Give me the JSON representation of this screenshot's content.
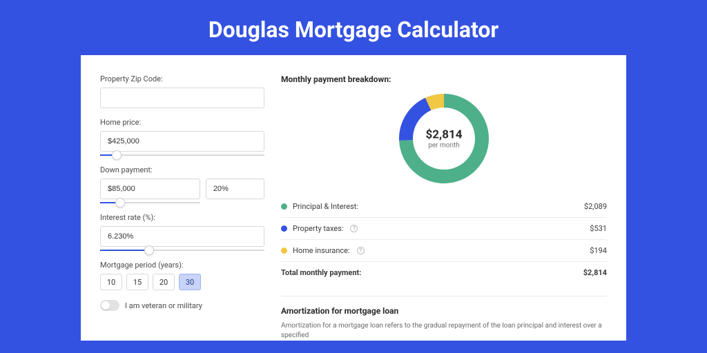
{
  "page_title": "Douglas Mortgage Calculator",
  "colors": {
    "page_bg": "#3452e1",
    "card_bg": "#ffffff",
    "accent": "#3452e1",
    "text_dark": "#2a2a2a",
    "text_muted": "#6a6a6a",
    "input_border": "#d8d8d8"
  },
  "form": {
    "zip_label": "Property Zip Code:",
    "zip_value": "",
    "home_price_label": "Home price:",
    "home_price_value": "$425,000",
    "home_price_slider_pct": 10,
    "down_payment_label": "Down payment:",
    "down_payment_value": "$85,000",
    "down_payment_pct_value": "20%",
    "down_payment_slider_pct": 20,
    "interest_label": "Interest rate (%):",
    "interest_value": "6.230%",
    "interest_slider_pct": 30,
    "period_label": "Mortgage period (years):",
    "period_options": [
      "10",
      "15",
      "20",
      "30"
    ],
    "period_selected": "30",
    "veteran_label": "I am veteran or military",
    "veteran_on": false
  },
  "breakdown": {
    "title": "Monthly payment breakdown:",
    "donut": {
      "center_amount": "$2,814",
      "center_sub": "per month",
      "segments": [
        {
          "label": "Principal & Interest",
          "value": 2089,
          "color": "#4db08a",
          "pct": 74.2
        },
        {
          "label": "Property taxes",
          "value": 531,
          "color": "#3452e1",
          "pct": 18.9
        },
        {
          "label": "Home insurance",
          "value": 194,
          "color": "#f2c744",
          "pct": 6.9
        }
      ],
      "stroke_width": 20,
      "radius": 55
    },
    "rows": [
      {
        "label": "Principal & Interest:",
        "amount": "$2,089",
        "dot": "#4db08a",
        "info": false
      },
      {
        "label": "Property taxes:",
        "amount": "$531",
        "dot": "#3452e1",
        "info": true
      },
      {
        "label": "Home insurance:",
        "amount": "$194",
        "dot": "#f2c744",
        "info": true
      }
    ],
    "total_label": "Total monthly payment:",
    "total_amount": "$2,814"
  },
  "amortization": {
    "title": "Amortization for mortgage loan",
    "text": "Amortization for a mortgage loan refers to the gradual repayment of the loan principal and interest over a specified"
  }
}
